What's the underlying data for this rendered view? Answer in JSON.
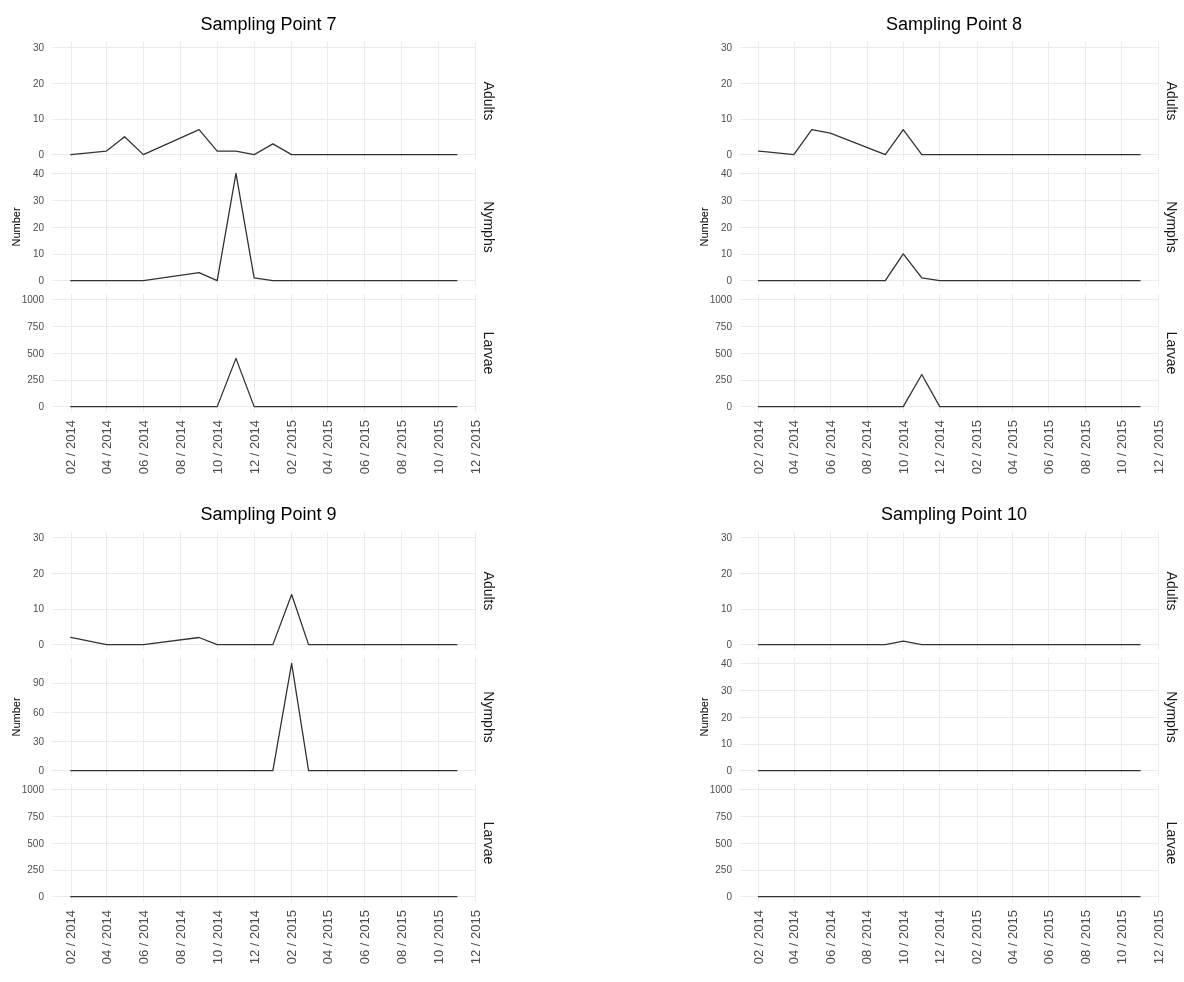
{
  "chart_data": [
    {
      "type": "line",
      "title": "Sampling Point 7",
      "x": [
        "2014-02",
        "2014-04",
        "2014-05",
        "2014-06",
        "2014-09",
        "2014-10",
        "2014-11",
        "2014-12",
        "2015-01",
        "2015-02",
        "2015-03",
        "2015-04",
        "2015-05",
        "2015-06",
        "2015-07",
        "2015-08",
        "2015-09",
        "2015-10",
        "2015-11"
      ],
      "series": [
        {
          "name": "Adults",
          "color": "#333333",
          "values": [
            0,
            1,
            5,
            0,
            7,
            1,
            1,
            0,
            3,
            0,
            0,
            0,
            0,
            0,
            0,
            0,
            0,
            0,
            0
          ]
        }
      ],
      "xlim": [
        "2014-01",
        "2015-12"
      ],
      "xticks": [
        {
          "value": "2014-02",
          "label": null
        },
        {
          "value": "2014-04",
          "label": null
        },
        {
          "value": "2014-06",
          "label": null
        },
        {
          "value": "2014-08",
          "label": null
        },
        {
          "value": "2014-10",
          "label": null
        },
        {
          "value": "2014-12",
          "label": null
        },
        {
          "value": "2015-02",
          "label": null
        },
        {
          "value": "2015-04",
          "label": null
        },
        {
          "value": "2015-06",
          "label": null
        },
        {
          "value": "2015-08",
          "label": null
        },
        {
          "value": "2015-10",
          "label": null
        },
        {
          "value": "2015-12",
          "label": null
        }
      ],
      "ylim": [
        -1.5,
        31.5
      ],
      "yticks": [
        0,
        10,
        20,
        30
      ],
      "grid": true,
      "marker": "none",
      "tick_labels": "y"
    },
    {
      "type": "line",
      "ylabel": "Number",
      "x": [
        "2014-02",
        "2014-04",
        "2014-05",
        "2014-06",
        "2014-09",
        "2014-10",
        "2014-11",
        "2014-12",
        "2015-01",
        "2015-02",
        "2015-03",
        "2015-04",
        "2015-05",
        "2015-06",
        "2015-07",
        "2015-08",
        "2015-09",
        "2015-10",
        "2015-11"
      ],
      "series": [
        {
          "name": "Nymphs",
          "color": "#333333",
          "values": [
            0,
            0,
            0,
            0,
            3,
            0,
            40,
            1,
            0,
            0,
            0,
            0,
            0,
            0,
            0,
            0,
            0,
            0,
            0
          ]
        }
      ],
      "xlim": [
        "2014-01",
        "2015-12"
      ],
      "xticks": [
        {
          "value": "2014-02",
          "label": null
        },
        {
          "value": "2014-04",
          "label": null
        },
        {
          "value": "2014-06",
          "label": null
        },
        {
          "value": "2014-08",
          "label": null
        },
        {
          "value": "2014-10",
          "label": null
        },
        {
          "value": "2014-12",
          "label": null
        },
        {
          "value": "2015-02",
          "label": null
        },
        {
          "value": "2015-04",
          "label": null
        },
        {
          "value": "2015-06",
          "label": null
        },
        {
          "value": "2015-08",
          "label": null
        },
        {
          "value": "2015-10",
          "label": null
        },
        {
          "value": "2015-12",
          "label": null
        }
      ],
      "ylim": [
        -2,
        42
      ],
      "yticks": [
        0,
        10,
        20,
        30,
        40
      ],
      "grid": true,
      "marker": "none",
      "tick_labels": "y"
    },
    {
      "type": "line",
      "x": [
        "2014-02",
        "2014-04",
        "2014-05",
        "2014-06",
        "2014-09",
        "2014-10",
        "2014-11",
        "2014-12",
        "2015-01",
        "2015-02",
        "2015-03",
        "2015-04",
        "2015-05",
        "2015-06",
        "2015-07",
        "2015-08",
        "2015-09",
        "2015-10",
        "2015-11"
      ],
      "series": [
        {
          "name": "Larvae",
          "color": "#333333",
          "values": [
            0,
            0,
            0,
            0,
            0,
            0,
            450,
            0,
            0,
            0,
            0,
            0,
            0,
            0,
            0,
            0,
            0,
            0,
            0
          ]
        }
      ],
      "xlim": [
        "2014-01",
        "2015-12"
      ],
      "xticks": [
        {
          "value": "2014-02",
          "label": "02 / 2014"
        },
        {
          "value": "2014-04",
          "label": "04 / 2014"
        },
        {
          "value": "2014-06",
          "label": "06 / 2014"
        },
        {
          "value": "2014-08",
          "label": "08 / 2014"
        },
        {
          "value": "2014-10",
          "label": "10 / 2014"
        },
        {
          "value": "2014-12",
          "label": "12 / 2014"
        },
        {
          "value": "2015-02",
          "label": "02 / 2015"
        },
        {
          "value": "2015-04",
          "label": "04 / 2015"
        },
        {
          "value": "2015-06",
          "label": "06 / 2015"
        },
        {
          "value": "2015-08",
          "label": "08 / 2015"
        },
        {
          "value": "2015-10",
          "label": "10 / 2015"
        },
        {
          "value": "2015-12",
          "label": "12 / 2015"
        }
      ],
      "ylim": [
        -50,
        1050
      ],
      "yticks": [
        0,
        250,
        500,
        750,
        1000
      ],
      "grid": true,
      "marker": "none"
    },
    {
      "type": "line",
      "title": "Sampling Point 8",
      "x": [
        "2014-02",
        "2014-04",
        "2014-05",
        "2014-06",
        "2014-09",
        "2014-10",
        "2014-11",
        "2014-12",
        "2015-01",
        "2015-02",
        "2015-03",
        "2015-04",
        "2015-05",
        "2015-06",
        "2015-07",
        "2015-08",
        "2015-09",
        "2015-10",
        "2015-11"
      ],
      "series": [
        {
          "name": "Adults",
          "color": "#333333",
          "values": [
            1,
            0,
            7,
            6,
            0,
            7,
            0,
            0,
            0,
            0,
            0,
            0,
            0,
            0,
            0,
            0,
            0,
            0,
            0
          ]
        }
      ],
      "xlim": [
        "2014-01",
        "2015-12"
      ],
      "xticks": [
        {
          "value": "2014-02",
          "label": null
        },
        {
          "value": "2014-04",
          "label": null
        },
        {
          "value": "2014-06",
          "label": null
        },
        {
          "value": "2014-08",
          "label": null
        },
        {
          "value": "2014-10",
          "label": null
        },
        {
          "value": "2014-12",
          "label": null
        },
        {
          "value": "2015-02",
          "label": null
        },
        {
          "value": "2015-04",
          "label": null
        },
        {
          "value": "2015-06",
          "label": null
        },
        {
          "value": "2015-08",
          "label": null
        },
        {
          "value": "2015-10",
          "label": null
        },
        {
          "value": "2015-12",
          "label": null
        }
      ],
      "ylim": [
        -1.5,
        31.5
      ],
      "yticks": [
        0,
        10,
        20,
        30
      ],
      "grid": true,
      "marker": "none",
      "tick_labels": "y"
    },
    {
      "type": "line",
      "ylabel": "Number",
      "x": [
        "2014-02",
        "2014-04",
        "2014-05",
        "2014-06",
        "2014-09",
        "2014-10",
        "2014-11",
        "2014-12",
        "2015-01",
        "2015-02",
        "2015-03",
        "2015-04",
        "2015-05",
        "2015-06",
        "2015-07",
        "2015-08",
        "2015-09",
        "2015-10",
        "2015-11"
      ],
      "series": [
        {
          "name": "Nymphs",
          "color": "#333333",
          "values": [
            0,
            0,
            0,
            0,
            0,
            10,
            1,
            0,
            0,
            0,
            0,
            0,
            0,
            0,
            0,
            0,
            0,
            0,
            0
          ]
        }
      ],
      "xlim": [
        "2014-01",
        "2015-12"
      ],
      "xticks": [
        {
          "value": "2014-02",
          "label": null
        },
        {
          "value": "2014-04",
          "label": null
        },
        {
          "value": "2014-06",
          "label": null
        },
        {
          "value": "2014-08",
          "label": null
        },
        {
          "value": "2014-10",
          "label": null
        },
        {
          "value": "2014-12",
          "label": null
        },
        {
          "value": "2015-02",
          "label": null
        },
        {
          "value": "2015-04",
          "label": null
        },
        {
          "value": "2015-06",
          "label": null
        },
        {
          "value": "2015-08",
          "label": null
        },
        {
          "value": "2015-10",
          "label": null
        },
        {
          "value": "2015-12",
          "label": null
        }
      ],
      "ylim": [
        -2,
        42
      ],
      "yticks": [
        0,
        10,
        20,
        30,
        40
      ],
      "grid": true,
      "marker": "none",
      "tick_labels": "y"
    },
    {
      "type": "line",
      "x": [
        "2014-02",
        "2014-04",
        "2014-05",
        "2014-06",
        "2014-09",
        "2014-10",
        "2014-11",
        "2014-12",
        "2015-01",
        "2015-02",
        "2015-03",
        "2015-04",
        "2015-05",
        "2015-06",
        "2015-07",
        "2015-08",
        "2015-09",
        "2015-10",
        "2015-11"
      ],
      "series": [
        {
          "name": "Larvae",
          "color": "#333333",
          "values": [
            0,
            0,
            0,
            0,
            0,
            0,
            300,
            0,
            0,
            0,
            0,
            0,
            0,
            0,
            0,
            0,
            0,
            0,
            0
          ]
        }
      ],
      "xlim": [
        "2014-01",
        "2015-12"
      ],
      "xticks": [
        {
          "value": "2014-02",
          "label": "02 / 2014"
        },
        {
          "value": "2014-04",
          "label": "04 / 2014"
        },
        {
          "value": "2014-06",
          "label": "06 / 2014"
        },
        {
          "value": "2014-08",
          "label": "08 / 2014"
        },
        {
          "value": "2014-10",
          "label": "10 / 2014"
        },
        {
          "value": "2014-12",
          "label": "12 / 2014"
        },
        {
          "value": "2015-02",
          "label": "02 / 2015"
        },
        {
          "value": "2015-04",
          "label": "04 / 2015"
        },
        {
          "value": "2015-06",
          "label": "06 / 2015"
        },
        {
          "value": "2015-08",
          "label": "08 / 2015"
        },
        {
          "value": "2015-10",
          "label": "10 / 2015"
        },
        {
          "value": "2015-12",
          "label": "12 / 2015"
        }
      ],
      "ylim": [
        -50,
        1050
      ],
      "yticks": [
        0,
        250,
        500,
        750,
        1000
      ],
      "grid": true,
      "marker": "none"
    },
    {
      "type": "line",
      "title": "Sampling Point 9",
      "x": [
        "2014-02",
        "2014-04",
        "2014-05",
        "2014-06",
        "2014-09",
        "2014-10",
        "2014-11",
        "2014-12",
        "2015-01",
        "2015-02",
        "2015-03",
        "2015-04",
        "2015-05",
        "2015-06",
        "2015-07",
        "2015-08",
        "2015-09",
        "2015-10",
        "2015-11"
      ],
      "series": [
        {
          "name": "Adults",
          "color": "#333333",
          "values": [
            2,
            0,
            0,
            0,
            2,
            0,
            0,
            0,
            0,
            14,
            0,
            0,
            0,
            0,
            0,
            0,
            0,
            0,
            0
          ]
        }
      ],
      "xlim": [
        "2014-01",
        "2015-12"
      ],
      "xticks": [
        {
          "value": "2014-02",
          "label": null
        },
        {
          "value": "2014-04",
          "label": null
        },
        {
          "value": "2014-06",
          "label": null
        },
        {
          "value": "2014-08",
          "label": null
        },
        {
          "value": "2014-10",
          "label": null
        },
        {
          "value": "2014-12",
          "label": null
        },
        {
          "value": "2015-02",
          "label": null
        },
        {
          "value": "2015-04",
          "label": null
        },
        {
          "value": "2015-06",
          "label": null
        },
        {
          "value": "2015-08",
          "label": null
        },
        {
          "value": "2015-10",
          "label": null
        },
        {
          "value": "2015-12",
          "label": null
        }
      ],
      "ylim": [
        -1.5,
        31.5
      ],
      "yticks": [
        0,
        10,
        20,
        30
      ],
      "grid": true,
      "marker": "none",
      "tick_labels": "y"
    },
    {
      "type": "line",
      "ylabel": "Number",
      "x": [
        "2014-02",
        "2014-04",
        "2014-05",
        "2014-06",
        "2014-09",
        "2014-10",
        "2014-11",
        "2014-12",
        "2015-01",
        "2015-02",
        "2015-03",
        "2015-04",
        "2015-05",
        "2015-06",
        "2015-07",
        "2015-08",
        "2015-09",
        "2015-10",
        "2015-11"
      ],
      "series": [
        {
          "name": "Nymphs",
          "color": "#333333",
          "values": [
            0,
            0,
            0,
            0,
            0,
            0,
            0,
            0,
            0,
            110,
            0,
            0,
            0,
            0,
            0,
            0,
            0,
            0,
            0
          ]
        }
      ],
      "xlim": [
        "2014-01",
        "2015-12"
      ],
      "xticks": [
        {
          "value": "2014-02",
          "label": null
        },
        {
          "value": "2014-04",
          "label": null
        },
        {
          "value": "2014-06",
          "label": null
        },
        {
          "value": "2014-08",
          "label": null
        },
        {
          "value": "2014-10",
          "label": null
        },
        {
          "value": "2014-12",
          "label": null
        },
        {
          "value": "2015-02",
          "label": null
        },
        {
          "value": "2015-04",
          "label": null
        },
        {
          "value": "2015-06",
          "label": null
        },
        {
          "value": "2015-08",
          "label": null
        },
        {
          "value": "2015-10",
          "label": null
        },
        {
          "value": "2015-12",
          "label": null
        }
      ],
      "ylim": [
        -5.5,
        115.5
      ],
      "yticks": [
        0,
        30,
        60,
        90
      ],
      "grid": true,
      "marker": "none",
      "tick_labels": "y"
    },
    {
      "type": "line",
      "x": [
        "2014-02",
        "2014-04",
        "2014-05",
        "2014-06",
        "2014-09",
        "2014-10",
        "2014-11",
        "2014-12",
        "2015-01",
        "2015-02",
        "2015-03",
        "2015-04",
        "2015-05",
        "2015-06",
        "2015-07",
        "2015-08",
        "2015-09",
        "2015-10",
        "2015-11"
      ],
      "series": [
        {
          "name": "Larvae",
          "color": "#333333",
          "values": [
            0,
            0,
            0,
            0,
            0,
            0,
            0,
            0,
            0,
            0,
            0,
            0,
            0,
            0,
            0,
            0,
            0,
            0,
            0
          ]
        }
      ],
      "xlim": [
        "2014-01",
        "2015-12"
      ],
      "xticks": [
        {
          "value": "2014-02",
          "label": "02 / 2014"
        },
        {
          "value": "2014-04",
          "label": "04 / 2014"
        },
        {
          "value": "2014-06",
          "label": "06 / 2014"
        },
        {
          "value": "2014-08",
          "label": "08 / 2014"
        },
        {
          "value": "2014-10",
          "label": "10 / 2014"
        },
        {
          "value": "2014-12",
          "label": "12 / 2014"
        },
        {
          "value": "2015-02",
          "label": "02 / 2015"
        },
        {
          "value": "2015-04",
          "label": "04 / 2015"
        },
        {
          "value": "2015-06",
          "label": "06 / 2015"
        },
        {
          "value": "2015-08",
          "label": "08 / 2015"
        },
        {
          "value": "2015-10",
          "label": "10 / 2015"
        },
        {
          "value": "2015-12",
          "label": "12 / 2015"
        }
      ],
      "ylim": [
        -50,
        1050
      ],
      "yticks": [
        0,
        250,
        500,
        750,
        1000
      ],
      "grid": true,
      "marker": "none"
    },
    {
      "type": "line",
      "title": "Sampling Point 10",
      "x": [
        "2014-02",
        "2014-04",
        "2014-05",
        "2014-06",
        "2014-09",
        "2014-10",
        "2014-11",
        "2014-12",
        "2015-01",
        "2015-02",
        "2015-03",
        "2015-04",
        "2015-05",
        "2015-06",
        "2015-07",
        "2015-08",
        "2015-09",
        "2015-10",
        "2015-11"
      ],
      "series": [
        {
          "name": "Adults",
          "color": "#333333",
          "values": [
            0,
            0,
            0,
            0,
            0,
            1,
            0,
            0,
            0,
            0,
            0,
            0,
            0,
            0,
            0,
            0,
            0,
            0,
            0
          ]
        }
      ],
      "xlim": [
        "2014-01",
        "2015-12"
      ],
      "xticks": [
        {
          "value": "2014-02",
          "label": null
        },
        {
          "value": "2014-04",
          "label": null
        },
        {
          "value": "2014-06",
          "label": null
        },
        {
          "value": "2014-08",
          "label": null
        },
        {
          "value": "2014-10",
          "label": null
        },
        {
          "value": "2014-12",
          "label": null
        },
        {
          "value": "2015-02",
          "label": null
        },
        {
          "value": "2015-04",
          "label": null
        },
        {
          "value": "2015-06",
          "label": null
        },
        {
          "value": "2015-08",
          "label": null
        },
        {
          "value": "2015-10",
          "label": null
        },
        {
          "value": "2015-12",
          "label": null
        }
      ],
      "ylim": [
        -1.5,
        31.5
      ],
      "yticks": [
        0,
        10,
        20,
        30
      ],
      "grid": true,
      "marker": "none",
      "tick_labels": "y"
    },
    {
      "type": "line",
      "ylabel": "Number",
      "x": [
        "2014-02",
        "2014-04",
        "2014-05",
        "2014-06",
        "2014-09",
        "2014-10",
        "2014-11",
        "2014-12",
        "2015-01",
        "2015-02",
        "2015-03",
        "2015-04",
        "2015-05",
        "2015-06",
        "2015-07",
        "2015-08",
        "2015-09",
        "2015-10",
        "2015-11"
      ],
      "series": [
        {
          "name": "Nymphs",
          "color": "#333333",
          "values": [
            0,
            0,
            0,
            0,
            0,
            0,
            0,
            0,
            0,
            0,
            0,
            0,
            0,
            0,
            0,
            0,
            0,
            0,
            0
          ]
        }
      ],
      "xlim": [
        "2014-01",
        "2015-12"
      ],
      "xticks": [
        {
          "value": "2014-02",
          "label": null
        },
        {
          "value": "2014-04",
          "label": null
        },
        {
          "value": "2014-06",
          "label": null
        },
        {
          "value": "2014-08",
          "label": null
        },
        {
          "value": "2014-10",
          "label": null
        },
        {
          "value": "2014-12",
          "label": null
        },
        {
          "value": "2015-02",
          "label": null
        },
        {
          "value": "2015-04",
          "label": null
        },
        {
          "value": "2015-06",
          "label": null
        },
        {
          "value": "2015-08",
          "label": null
        },
        {
          "value": "2015-10",
          "label": null
        },
        {
          "value": "2015-12",
          "label": null
        }
      ],
      "ylim": [
        -2,
        42
      ],
      "yticks": [
        0,
        10,
        20,
        30,
        40
      ],
      "grid": true,
      "marker": "none",
      "tick_labels": "y"
    },
    {
      "type": "line",
      "x": [
        "2014-02",
        "2014-04",
        "2014-05",
        "2014-06",
        "2014-09",
        "2014-10",
        "2014-11",
        "2014-12",
        "2015-01",
        "2015-02",
        "2015-03",
        "2015-04",
        "2015-05",
        "2015-06",
        "2015-07",
        "2015-08",
        "2015-09",
        "2015-10",
        "2015-11"
      ],
      "series": [
        {
          "name": "Larvae",
          "color": "#333333",
          "values": [
            0,
            0,
            0,
            0,
            0,
            0,
            0,
            0,
            0,
            0,
            0,
            0,
            0,
            0,
            0,
            0,
            0,
            0,
            0
          ]
        }
      ],
      "xlim": [
        "2014-01",
        "2015-12"
      ],
      "xticks": [
        {
          "value": "2014-02",
          "label": "02 / 2014"
        },
        {
          "value": "2014-04",
          "label": "04 / 2014"
        },
        {
          "value": "2014-06",
          "label": "06 / 2014"
        },
        {
          "value": "2014-08",
          "label": "08 / 2014"
        },
        {
          "value": "2014-10",
          "label": "10 / 2014"
        },
        {
          "value": "2014-12",
          "label": "12 / 2014"
        },
        {
          "value": "2015-02",
          "label": "02 / 2015"
        },
        {
          "value": "2015-04",
          "label": "04 / 2015"
        },
        {
          "value": "2015-06",
          "label": "06 / 2015"
        },
        {
          "value": "2015-08",
          "label": "08 / 2015"
        },
        {
          "value": "2015-10",
          "label": "10 / 2015"
        },
        {
          "value": "2015-12",
          "label": "12 / 2015"
        }
      ],
      "ylim": [
        -50,
        1050
      ],
      "yticks": [
        0,
        250,
        500,
        750,
        1000
      ],
      "grid": true,
      "marker": "none"
    }
  ]
}
